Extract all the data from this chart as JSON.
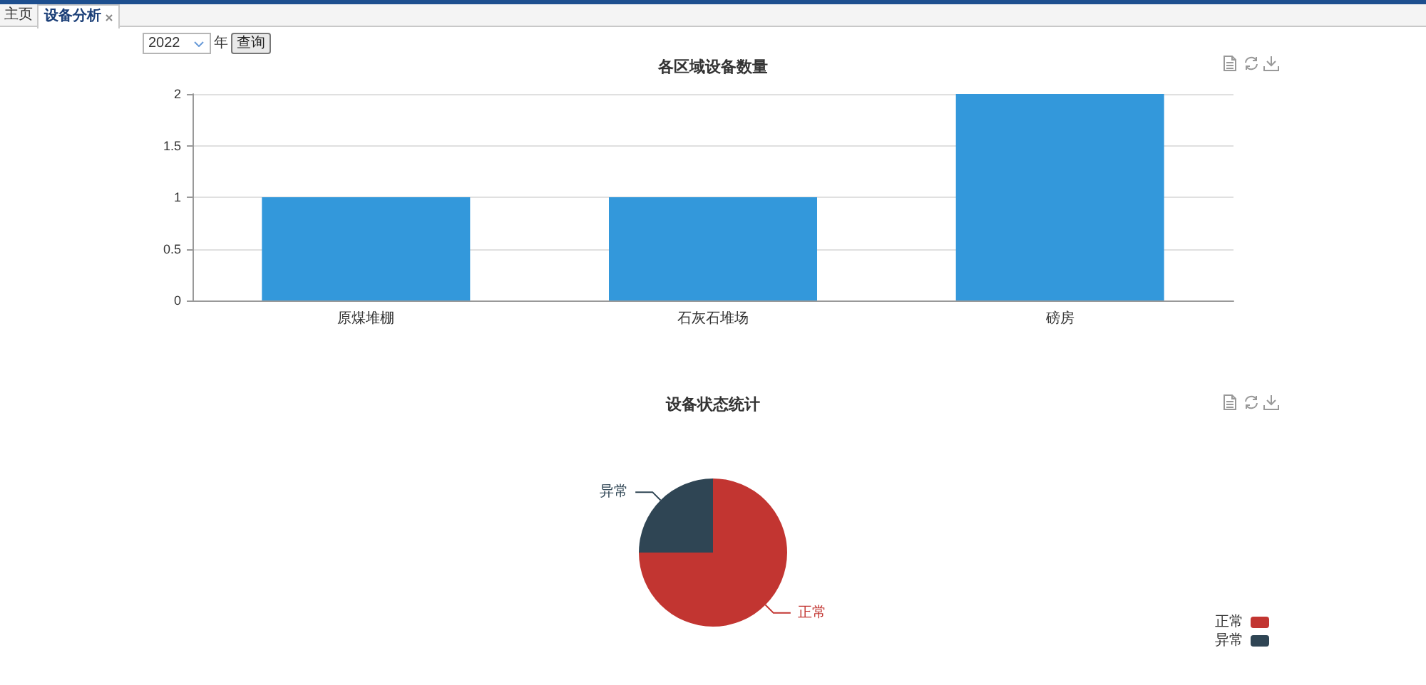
{
  "chart_data": [
    {
      "type": "bar",
      "title": "各区域设备数量",
      "categories": [
        "原煤堆棚",
        "石灰石堆场",
        "磅房"
      ],
      "values": [
        1,
        1,
        2
      ],
      "color": "#3398db",
      "ylim": [
        0,
        2
      ],
      "yticks": [
        0,
        0.5,
        1,
        1.5,
        2
      ],
      "grid": "y",
      "annotations": [
        "主页",
        "设备分析",
        "2022",
        "年",
        "查询"
      ]
    },
    {
      "type": "pie",
      "title": "设备状态统计",
      "categories": [
        "正常",
        "异常"
      ],
      "values": [
        75,
        25
      ],
      "colors": [
        "#c23531",
        "#2f4554"
      ],
      "legend": "bottom right"
    }
  ]
}
